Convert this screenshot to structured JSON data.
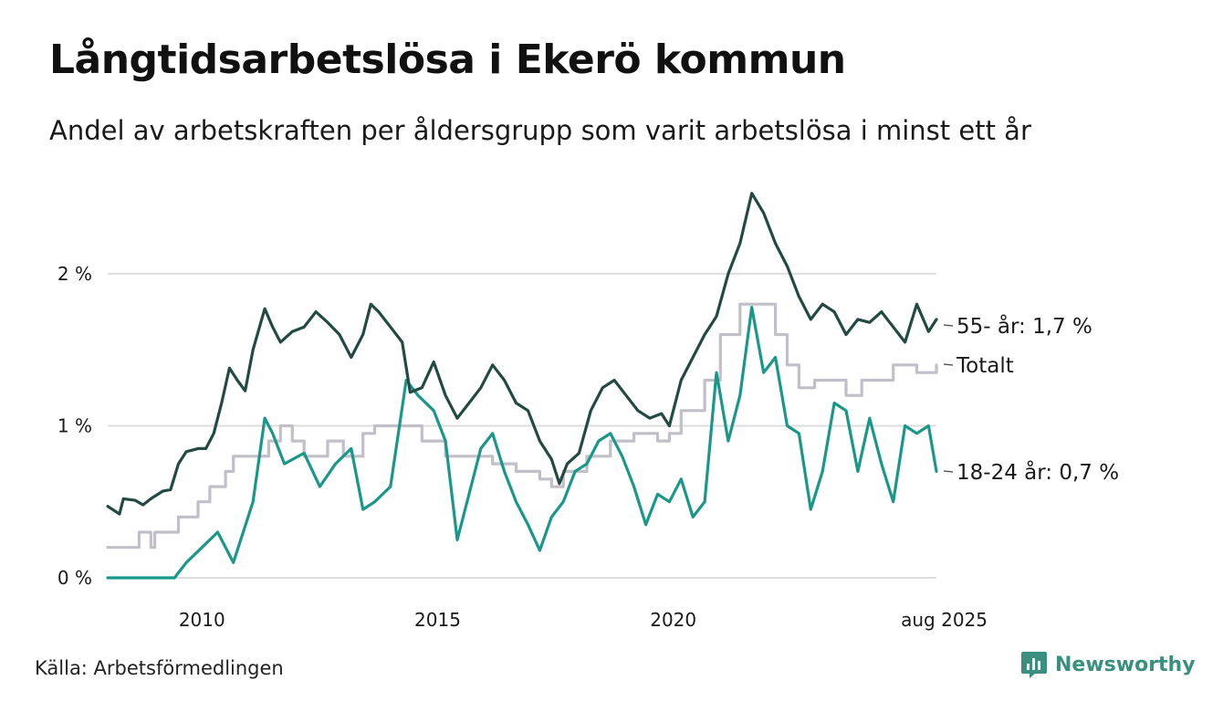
{
  "title": "Långtidsarbetslösa i Ekerö kommun",
  "subtitle": "Andel av arbetskraften per åldersgrupp som varit arbetslösa i minst ett år",
  "source": "Källa: Arbetsförmedlingen",
  "brand": "Newsworthy",
  "colors": {
    "series_55": "#234a42",
    "series_total": "#c2bfc9",
    "series_18_24": "#1b978a",
    "grid": "#dddddd",
    "brand": "#3a8f7e"
  },
  "chart_data": {
    "type": "line",
    "title": "Långtidsarbetslösa i Ekerö kommun",
    "subtitle": "Andel av arbetskraften per åldersgrupp som varit arbetslösa i minst ett år",
    "xlabel": "",
    "ylabel": "",
    "xlim": [
      "2008-01",
      "2025-08"
    ],
    "ylim": [
      0,
      2.6
    ],
    "x_ticks": [
      {
        "date": "2010-01",
        "label": "2010"
      },
      {
        "date": "2015-01",
        "label": "2015"
      },
      {
        "date": "2020-01",
        "label": "2020"
      },
      {
        "date": "2025-08",
        "label": "aug 2025"
      }
    ],
    "y_ticks": [
      {
        "value": 0,
        "label": "0 %"
      },
      {
        "value": 1,
        "label": "1 %"
      },
      {
        "value": 2,
        "label": "2 %"
      }
    ],
    "grid": true,
    "series": [
      {
        "key": "s55",
        "end_label": "55- år: 1,7 %",
        "points": [
          [
            "2008-01",
            0.47
          ],
          [
            "2008-04",
            0.42
          ],
          [
            "2008-05",
            0.52
          ],
          [
            "2008-08",
            0.51
          ],
          [
            "2008-10",
            0.48
          ],
          [
            "2008-12",
            0.52
          ],
          [
            "2009-03",
            0.57
          ],
          [
            "2009-05",
            0.58
          ],
          [
            "2009-07",
            0.75
          ],
          [
            "2009-09",
            0.83
          ],
          [
            "2009-12",
            0.85
          ],
          [
            "2010-02",
            0.85
          ],
          [
            "2010-04",
            0.95
          ],
          [
            "2010-06",
            1.15
          ],
          [
            "2010-08",
            1.38
          ],
          [
            "2010-10",
            1.3
          ],
          [
            "2010-12",
            1.23
          ],
          [
            "2011-02",
            1.5
          ],
          [
            "2011-05",
            1.77
          ],
          [
            "2011-07",
            1.65
          ],
          [
            "2011-09",
            1.55
          ],
          [
            "2011-12",
            1.62
          ],
          [
            "2012-03",
            1.65
          ],
          [
            "2012-06",
            1.75
          ],
          [
            "2012-09",
            1.68
          ],
          [
            "2012-12",
            1.6
          ],
          [
            "2013-03",
            1.45
          ],
          [
            "2013-06",
            1.6
          ],
          [
            "2013-08",
            1.8
          ],
          [
            "2013-10",
            1.75
          ],
          [
            "2014-01",
            1.65
          ],
          [
            "2014-04",
            1.55
          ],
          [
            "2014-06",
            1.22
          ],
          [
            "2014-09",
            1.25
          ],
          [
            "2014-12",
            1.42
          ],
          [
            "2015-03",
            1.2
          ],
          [
            "2015-06",
            1.05
          ],
          [
            "2015-09",
            1.15
          ],
          [
            "2015-12",
            1.25
          ],
          [
            "2016-03",
            1.4
          ],
          [
            "2016-06",
            1.3
          ],
          [
            "2016-09",
            1.15
          ],
          [
            "2016-12",
            1.1
          ],
          [
            "2017-03",
            0.9
          ],
          [
            "2017-06",
            0.78
          ],
          [
            "2017-08",
            0.62
          ],
          [
            "2017-10",
            0.75
          ],
          [
            "2018-01",
            0.82
          ],
          [
            "2018-04",
            1.1
          ],
          [
            "2018-07",
            1.25
          ],
          [
            "2018-10",
            1.3
          ],
          [
            "2019-01",
            1.2
          ],
          [
            "2019-04",
            1.1
          ],
          [
            "2019-07",
            1.05
          ],
          [
            "2019-10",
            1.08
          ],
          [
            "2019-12",
            1.0
          ],
          [
            "2020-03",
            1.3
          ],
          [
            "2020-06",
            1.45
          ],
          [
            "2020-09",
            1.6
          ],
          [
            "2020-12",
            1.72
          ],
          [
            "2021-03",
            2.0
          ],
          [
            "2021-06",
            2.2
          ],
          [
            "2021-09",
            2.53
          ],
          [
            "2021-12",
            2.4
          ],
          [
            "2022-03",
            2.2
          ],
          [
            "2022-06",
            2.05
          ],
          [
            "2022-09",
            1.85
          ],
          [
            "2022-12",
            1.7
          ],
          [
            "2023-03",
            1.8
          ],
          [
            "2023-06",
            1.75
          ],
          [
            "2023-09",
            1.6
          ],
          [
            "2023-12",
            1.7
          ],
          [
            "2024-03",
            1.68
          ],
          [
            "2024-06",
            1.75
          ],
          [
            "2024-09",
            1.65
          ],
          [
            "2024-12",
            1.55
          ],
          [
            "2025-03",
            1.8
          ],
          [
            "2025-06",
            1.62
          ],
          [
            "2025-08",
            1.7
          ]
        ]
      },
      {
        "key": "total",
        "end_label": "Totalt",
        "points": [
          [
            "2008-01",
            0.2
          ],
          [
            "2008-08",
            0.2
          ],
          [
            "2008-09",
            0.3
          ],
          [
            "2008-12",
            0.2
          ],
          [
            "2009-01",
            0.3
          ],
          [
            "2009-07",
            0.4
          ],
          [
            "2009-12",
            0.5
          ],
          [
            "2010-03",
            0.6
          ],
          [
            "2010-07",
            0.7
          ],
          [
            "2010-09",
            0.8
          ],
          [
            "2011-01",
            0.8
          ],
          [
            "2011-06",
            0.9
          ],
          [
            "2011-09",
            1.0
          ],
          [
            "2011-12",
            0.9
          ],
          [
            "2012-03",
            0.8
          ],
          [
            "2012-09",
            0.9
          ],
          [
            "2013-01",
            0.8
          ],
          [
            "2013-06",
            0.95
          ],
          [
            "2013-09",
            1.0
          ],
          [
            "2014-03",
            1.0
          ],
          [
            "2014-09",
            0.9
          ],
          [
            "2015-03",
            0.8
          ],
          [
            "2015-09",
            0.8
          ],
          [
            "2016-03",
            0.75
          ],
          [
            "2016-09",
            0.7
          ],
          [
            "2017-03",
            0.65
          ],
          [
            "2017-06",
            0.6
          ],
          [
            "2017-09",
            0.7
          ],
          [
            "2018-03",
            0.8
          ],
          [
            "2018-09",
            0.9
          ],
          [
            "2019-03",
            0.95
          ],
          [
            "2019-09",
            0.9
          ],
          [
            "2019-12",
            0.95
          ],
          [
            "2020-03",
            1.1
          ],
          [
            "2020-09",
            1.3
          ],
          [
            "2021-01",
            1.6
          ],
          [
            "2021-06",
            1.8
          ],
          [
            "2021-09",
            1.8
          ],
          [
            "2022-03",
            1.6
          ],
          [
            "2022-06",
            1.4
          ],
          [
            "2022-09",
            1.25
          ],
          [
            "2023-01",
            1.3
          ],
          [
            "2023-09",
            1.2
          ],
          [
            "2024-01",
            1.3
          ],
          [
            "2024-09",
            1.4
          ],
          [
            "2025-03",
            1.35
          ],
          [
            "2025-08",
            1.4
          ]
        ]
      },
      {
        "key": "s18_24",
        "end_label": "18-24 år: 0,7 %",
        "points": [
          [
            "2008-01",
            0.0
          ],
          [
            "2009-06",
            0.0
          ],
          [
            "2009-09",
            0.1
          ],
          [
            "2010-01",
            0.2
          ],
          [
            "2010-05",
            0.3
          ],
          [
            "2010-09",
            0.1
          ],
          [
            "2011-02",
            0.5
          ],
          [
            "2011-05",
            1.05
          ],
          [
            "2011-07",
            0.95
          ],
          [
            "2011-10",
            0.75
          ],
          [
            "2012-03",
            0.82
          ],
          [
            "2012-07",
            0.6
          ],
          [
            "2012-11",
            0.75
          ],
          [
            "2013-03",
            0.85
          ],
          [
            "2013-06",
            0.45
          ],
          [
            "2013-09",
            0.5
          ],
          [
            "2014-01",
            0.6
          ],
          [
            "2014-05",
            1.3
          ],
          [
            "2014-08",
            1.2
          ],
          [
            "2014-12",
            1.1
          ],
          [
            "2015-03",
            0.9
          ],
          [
            "2015-06",
            0.25
          ],
          [
            "2015-09",
            0.55
          ],
          [
            "2015-12",
            0.85
          ],
          [
            "2016-03",
            0.95
          ],
          [
            "2016-06",
            0.7
          ],
          [
            "2016-09",
            0.5
          ],
          [
            "2016-12",
            0.35
          ],
          [
            "2017-03",
            0.18
          ],
          [
            "2017-06",
            0.4
          ],
          [
            "2017-09",
            0.5
          ],
          [
            "2017-12",
            0.7
          ],
          [
            "2018-03",
            0.75
          ],
          [
            "2018-06",
            0.9
          ],
          [
            "2018-09",
            0.95
          ],
          [
            "2018-12",
            0.8
          ],
          [
            "2019-03",
            0.6
          ],
          [
            "2019-06",
            0.35
          ],
          [
            "2019-09",
            0.55
          ],
          [
            "2019-12",
            0.5
          ],
          [
            "2020-03",
            0.65
          ],
          [
            "2020-06",
            0.4
          ],
          [
            "2020-09",
            0.5
          ],
          [
            "2020-12",
            1.35
          ],
          [
            "2021-03",
            0.9
          ],
          [
            "2021-06",
            1.2
          ],
          [
            "2021-09",
            1.78
          ],
          [
            "2021-12",
            1.35
          ],
          [
            "2022-03",
            1.45
          ],
          [
            "2022-06",
            1.0
          ],
          [
            "2022-09",
            0.95
          ],
          [
            "2022-12",
            0.45
          ],
          [
            "2023-03",
            0.7
          ],
          [
            "2023-06",
            1.15
          ],
          [
            "2023-09",
            1.1
          ],
          [
            "2023-12",
            0.7
          ],
          [
            "2024-03",
            1.05
          ],
          [
            "2024-06",
            0.75
          ],
          [
            "2024-09",
            0.5
          ],
          [
            "2024-12",
            1.0
          ],
          [
            "2025-03",
            0.95
          ],
          [
            "2025-06",
            1.0
          ],
          [
            "2025-08",
            0.7
          ]
        ]
      }
    ]
  }
}
